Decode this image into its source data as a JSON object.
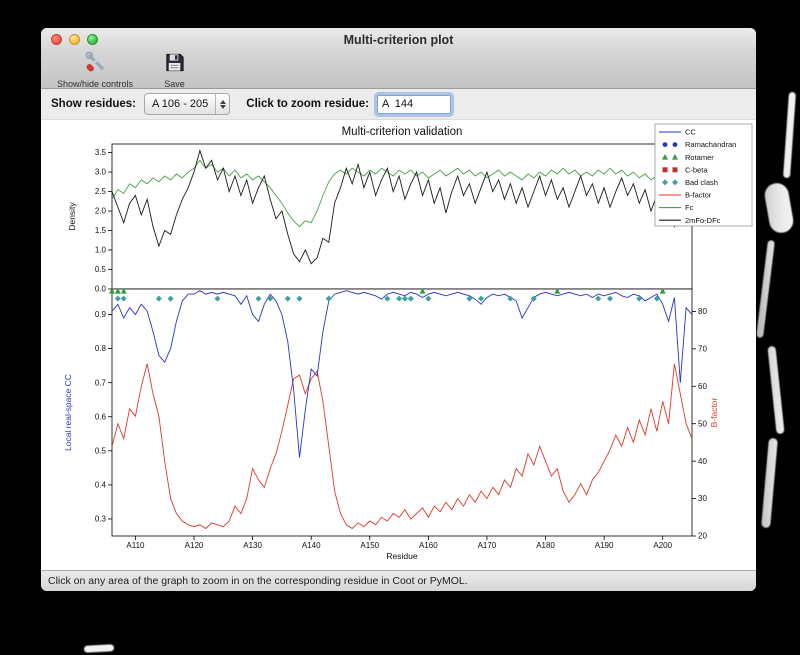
{
  "window": {
    "title": "Multi-criterion plot",
    "toolbar": [
      {
        "label": "Show/hide controls",
        "icon": "tools-icon"
      },
      {
        "label": "Save",
        "icon": "save-icon"
      }
    ],
    "controls": {
      "show_residues_label": "Show residues:",
      "residue_range_value": "A 106 - 205",
      "zoom_label": "Click to zoom residue:",
      "zoom_value": "A  144"
    },
    "status_bar": "Click on any area of the graph to zoom in on the corresponding residue in Coot or PyMOL."
  },
  "chart_data": {
    "type": "line",
    "title": "Multi-criterion validation",
    "x_label": "Residue",
    "x_lim": [
      106,
      205
    ],
    "x_tick_residues": [
      110,
      120,
      130,
      140,
      150,
      160,
      170,
      180,
      190,
      200
    ],
    "x_tick_labels": [
      "A110",
      "A120",
      "A130",
      "A140",
      "A150",
      "A160",
      "A170",
      "A180",
      "A190",
      "A200"
    ],
    "top": {
      "y_label": "Density",
      "ylim": [
        0,
        3.72
      ],
      "y_ticks": [
        0.0,
        0.5,
        1.0,
        1.5,
        2.0,
        2.5,
        3.0,
        3.5
      ],
      "series": [
        {
          "name": "Fc",
          "color": "#4d9e4d",
          "values": [
            2.3,
            2.55,
            2.45,
            2.7,
            2.6,
            2.8,
            2.7,
            2.85,
            2.75,
            2.9,
            2.8,
            2.95,
            2.85,
            3.0,
            3.1,
            3.3,
            3.1,
            3.2,
            3.0,
            3.1,
            2.9,
            3.05,
            2.85,
            2.95,
            2.8,
            2.9,
            2.75,
            2.6,
            2.4,
            2.2,
            1.95,
            1.75,
            1.6,
            1.75,
            1.7,
            2.0,
            2.4,
            2.75,
            2.95,
            3.05,
            2.95,
            3.1,
            3.0,
            2.9,
            3.05,
            2.95,
            3.1,
            3.0,
            2.9,
            3.05,
            2.95,
            3.05,
            2.9,
            3.0,
            2.85,
            2.95,
            3.05,
            2.9,
            3.0,
            3.1,
            2.95,
            3.05,
            2.9,
            3.0,
            2.85,
            2.95,
            3.05,
            2.9,
            3.0,
            2.9,
            2.8,
            2.95,
            2.85,
            3.0,
            2.9,
            3.05,
            2.95,
            3.1,
            2.95,
            3.05,
            2.9,
            3.0,
            2.9,
            3.05,
            2.95,
            3.1,
            2.95,
            3.05,
            2.9,
            3.0,
            2.85,
            2.95,
            2.8,
            2.9,
            2.75,
            2.85,
            2.6,
            2.75,
            2.5,
            2.4
          ]
        },
        {
          "name": "2mFo-DFc",
          "color": "#1a1a1a",
          "values": [
            2.5,
            2.1,
            1.7,
            2.2,
            2.4,
            1.9,
            2.3,
            1.6,
            1.1,
            1.5,
            1.4,
            1.9,
            2.3,
            2.6,
            3.0,
            3.55,
            3.1,
            3.3,
            2.8,
            3.1,
            2.5,
            2.9,
            2.4,
            2.8,
            2.2,
            2.6,
            2.9,
            2.3,
            1.8,
            2.0,
            1.4,
            0.9,
            0.7,
            1.0,
            0.65,
            0.8,
            1.3,
            1.2,
            2.2,
            2.6,
            3.1,
            2.7,
            3.2,
            2.6,
            3.0,
            2.4,
            2.8,
            3.1,
            2.5,
            2.9,
            2.3,
            2.7,
            3.0,
            2.4,
            2.8,
            2.2,
            2.6,
            1.95,
            2.5,
            2.9,
            2.4,
            2.7,
            2.2,
            2.6,
            3.0,
            2.5,
            2.8,
            2.3,
            2.7,
            2.2,
            2.6,
            2.1,
            2.5,
            2.9,
            2.4,
            2.8,
            2.3,
            2.6,
            2.1,
            2.5,
            2.9,
            2.4,
            2.7,
            2.2,
            2.6,
            2.1,
            2.5,
            2.85,
            2.4,
            2.7,
            2.2,
            2.55,
            2.0,
            2.4,
            2.2,
            1.9,
            1.6,
            2.1,
            2.3,
            2.2
          ]
        }
      ]
    },
    "bottom": {
      "left_label": "Local real-space CC",
      "left_color": "#2734cc",
      "left_lim": [
        0.25,
        0.975
      ],
      "left_ticks": [
        0.3,
        0.4,
        0.5,
        0.6,
        0.7,
        0.8,
        0.9
      ],
      "right_label": "B-factor",
      "right_color": "#dd3a2a",
      "right_lim": [
        20,
        86
      ],
      "right_ticks": [
        20,
        30,
        40,
        50,
        60,
        70,
        80
      ],
      "cc_series": {
        "name": "CC",
        "color": "#2734cc",
        "values": [
          0.91,
          0.93,
          0.89,
          0.92,
          0.9,
          0.93,
          0.91,
          0.85,
          0.78,
          0.76,
          0.8,
          0.88,
          0.94,
          0.96,
          0.96,
          0.97,
          0.96,
          0.965,
          0.96,
          0.965,
          0.96,
          0.955,
          0.93,
          0.955,
          0.9,
          0.88,
          0.93,
          0.96,
          0.94,
          0.9,
          0.82,
          0.68,
          0.48,
          0.62,
          0.74,
          0.72,
          0.85,
          0.94,
          0.96,
          0.965,
          0.97,
          0.965,
          0.96,
          0.965,
          0.96,
          0.955,
          0.945,
          0.96,
          0.965,
          0.96,
          0.955,
          0.965,
          0.96,
          0.95,
          0.96,
          0.965,
          0.96,
          0.955,
          0.96,
          0.965,
          0.96,
          0.955,
          0.945,
          0.93,
          0.95,
          0.96,
          0.955,
          0.96,
          0.95,
          0.94,
          0.89,
          0.92,
          0.95,
          0.96,
          0.965,
          0.96,
          0.955,
          0.96,
          0.965,
          0.96,
          0.955,
          0.96,
          0.95,
          0.96,
          0.955,
          0.96,
          0.965,
          0.955,
          0.95,
          0.96,
          0.955,
          0.94,
          0.95,
          0.96,
          0.93,
          0.88,
          0.95,
          0.7,
          0.92,
          0.9
        ]
      },
      "b_series": {
        "name": "B-factor",
        "color": "#dd3a2a",
        "values": [
          44,
          50,
          46,
          54,
          52,
          60,
          66,
          58,
          52,
          40,
          30,
          26,
          24,
          23,
          22.5,
          23,
          22,
          23.5,
          23,
          22.5,
          24,
          28,
          26,
          30,
          38,
          35,
          33,
          38,
          42,
          48,
          55,
          62,
          63,
          58,
          62,
          64,
          56,
          44,
          32,
          26,
          23,
          22,
          23.5,
          22.5,
          24,
          23,
          25,
          24,
          26,
          25,
          27,
          24.5,
          26,
          27.5,
          25,
          28,
          26.5,
          29,
          27,
          30,
          28,
          31,
          29,
          32,
          30,
          33,
          31,
          35,
          33,
          38,
          36,
          42,
          39,
          44,
          40,
          36,
          38,
          32,
          29,
          31,
          34,
          31,
          35,
          37,
          40,
          43,
          47,
          44,
          49,
          45,
          51,
          47,
          54,
          48,
          56,
          50,
          66,
          58,
          50,
          46
        ]
      },
      "markers": {
        "rotamer": {
          "shape": "triangle",
          "color": "#2f9e3f",
          "residues": [
            106,
            107,
            108,
            159,
            182,
            200
          ]
        },
        "bad_clash": {
          "shape": "diamond",
          "color": "#3fa0a0",
          "residues": [
            107,
            108,
            114,
            116,
            124,
            131,
            133,
            136,
            138,
            143,
            153,
            155,
            156,
            157,
            160,
            167,
            169,
            174,
            178,
            189,
            191,
            196,
            199
          ]
        },
        "ramachandran": {
          "shape": "circle",
          "color": "#2734cc",
          "residues": []
        },
        "c_beta": {
          "shape": "square",
          "color": "#cc2b2b",
          "residues": []
        }
      }
    },
    "legend": [
      {
        "label": "CC",
        "type": "line",
        "color": "#2734cc"
      },
      {
        "label": "Ramachandran",
        "type": "circle",
        "color": "#2734cc"
      },
      {
        "label": "Rotamer",
        "type": "triangle",
        "color": "#2f9e3f"
      },
      {
        "label": "C-beta",
        "type": "square",
        "color": "#cc2b2b"
      },
      {
        "label": "Bad clash",
        "type": "diamond",
        "color": "#3fa0a0"
      },
      {
        "label": "B-factor",
        "type": "line",
        "color": "#dd3a2a"
      },
      {
        "label": "Fc",
        "type": "line",
        "color": "#4d9e4d"
      },
      {
        "label": "2mFo-DFc",
        "type": "line",
        "color": "#1a1a1a"
      }
    ]
  }
}
